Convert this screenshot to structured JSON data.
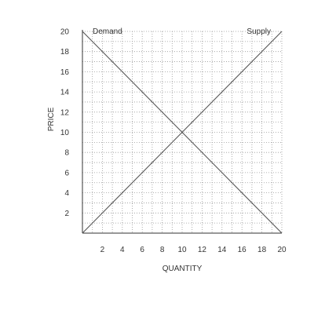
{
  "chart_data": {
    "type": "line",
    "title": "",
    "xlabel": "QUANTITY",
    "ylabel": "PRICE",
    "xlim": [
      0,
      20
    ],
    "ylim": [
      0,
      20
    ],
    "x_ticks": [
      2,
      4,
      6,
      8,
      10,
      12,
      14,
      16,
      18,
      20
    ],
    "y_ticks": [
      2,
      4,
      6,
      8,
      10,
      12,
      14,
      16,
      18,
      20
    ],
    "grid": true,
    "grid_style": "dotted",
    "series": [
      {
        "name": "Demand",
        "points": [
          [
            0,
            20
          ],
          [
            20,
            0
          ]
        ]
      },
      {
        "name": "Supply",
        "points": [
          [
            0,
            0
          ],
          [
            20,
            20
          ]
        ]
      }
    ],
    "colors": {
      "line": "#555555",
      "axis": "#333333",
      "grid": "#999999",
      "text": "#333333"
    }
  }
}
